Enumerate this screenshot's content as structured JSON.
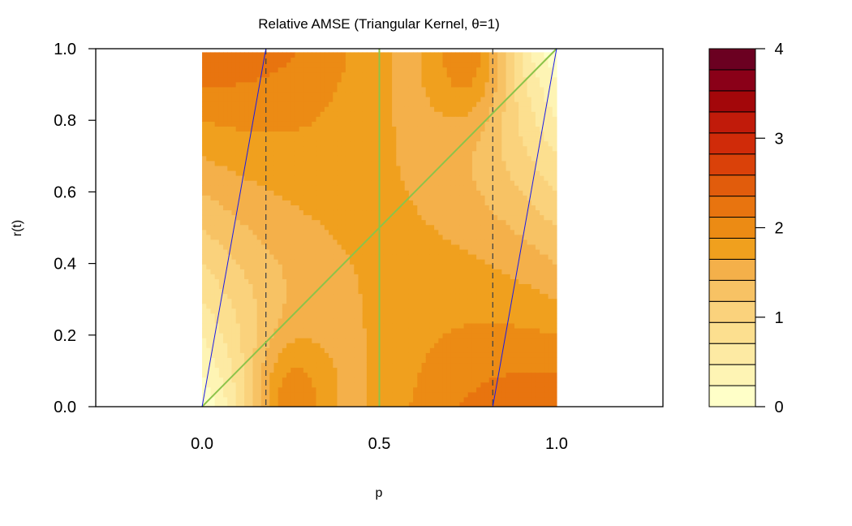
{
  "chart_data": {
    "type": "heatmap",
    "title": "Relative AMSE (Triangular Kernel, θ=1)",
    "xlabel": "p",
    "ylabel": "r(t)",
    "xlim": [
      -0.3,
      1.3
    ],
    "ylim": [
      0,
      1
    ],
    "x_ticks": [
      "0.0",
      "0.5",
      "1.0"
    ],
    "y_ticks": [
      "0.0",
      "0.2",
      "0.4",
      "0.6",
      "0.8",
      "1.0"
    ],
    "colorbar": {
      "range": [
        0,
        4
      ],
      "ticks": [
        "0",
        "1",
        "2",
        "3",
        "4"
      ],
      "levels": [
        0,
        0.25,
        0.5,
        0.75,
        1.0,
        1.25,
        1.5,
        1.75,
        2.0,
        2.25,
        2.5,
        2.75,
        3.0,
        3.25,
        3.5,
        3.75,
        4.0
      ],
      "colors": [
        "#FFFFC8",
        "#FEF4B4",
        "#FDEAA3",
        "#FCDF8F",
        "#FAD27C",
        "#F7C264",
        "#F4B04A",
        "#F0A01E",
        "#EC8B14",
        "#E8740F",
        "#E15C0C",
        "#DA4109",
        "#D02B09",
        "#C11B0A",
        "#A3070A",
        "#8A0018",
        "#6B0021"
      ]
    },
    "dashed_lines_x": [
      0.18,
      0.82
    ],
    "green_lines": [
      {
        "x": [
          0,
          1
        ],
        "y": [
          0,
          1
        ]
      },
      {
        "x": [
          0.5,
          0.5
        ],
        "y": [
          0,
          1
        ]
      }
    ],
    "blue_lines": [
      {
        "x": [
          0,
          0.18
        ],
        "y": [
          0,
          1
        ]
      },
      {
        "x": [
          0.82,
          1
        ],
        "y": [
          0,
          1
        ]
      }
    ],
    "line_colors": {
      "green": "#8BC34A",
      "blue": "#1A1AE6",
      "dashed": "#444444"
    }
  }
}
